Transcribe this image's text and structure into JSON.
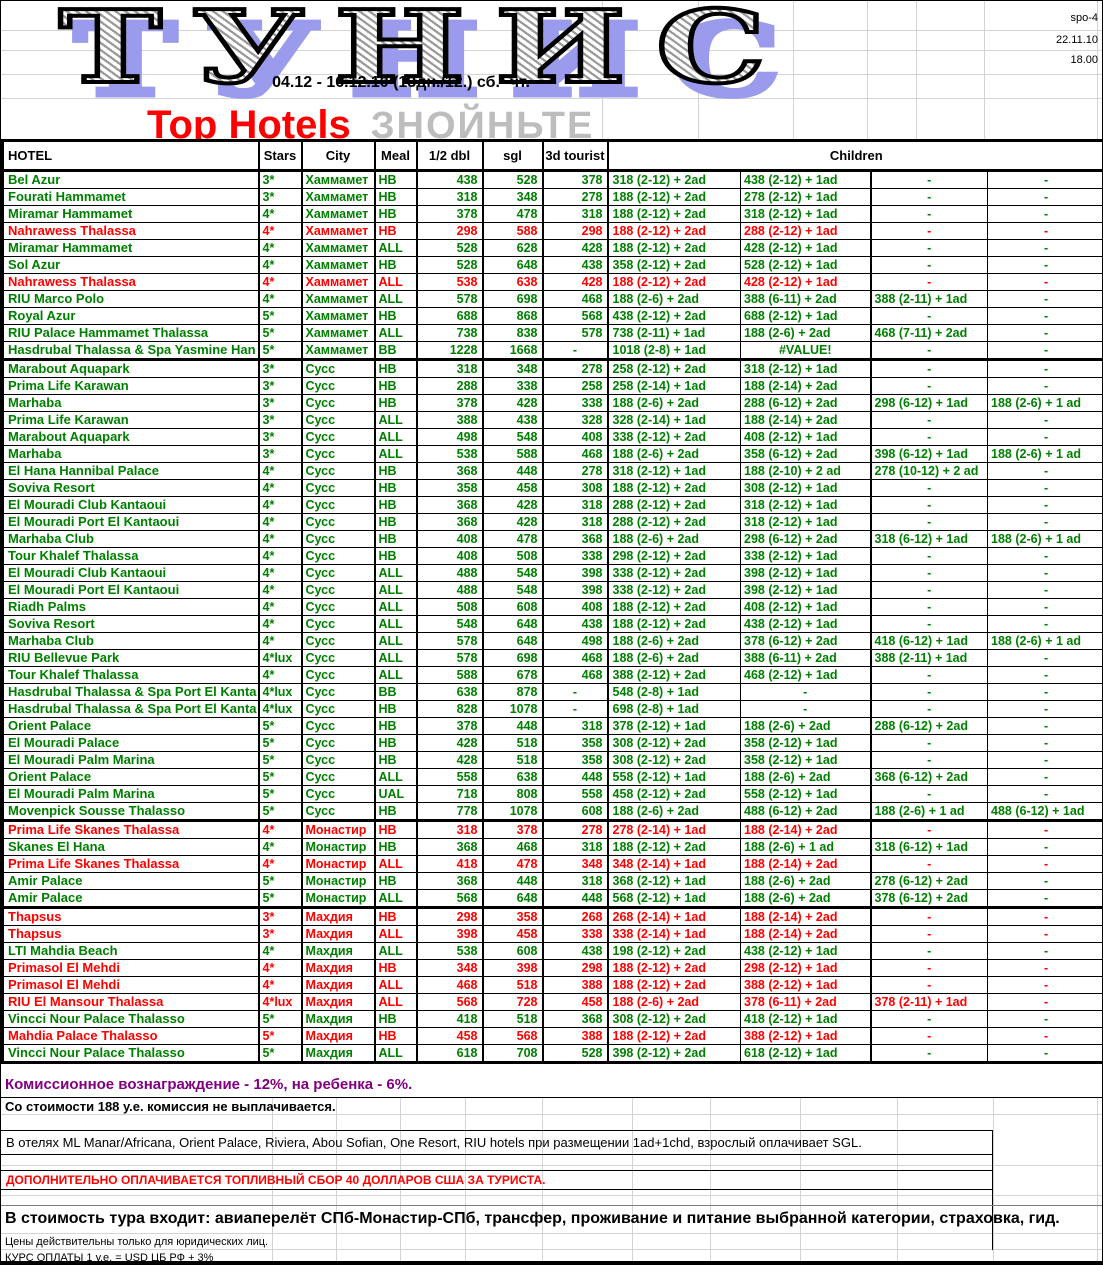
{
  "meta": {
    "ref": "spo-4",
    "date": "22.11.10",
    "time": "18.00"
  },
  "title": "ТУНИС",
  "subtitle": "04.12 - 16.12.10 (13дн./12.) сб. -чт.",
  "promo": {
    "red": "Top Hotels",
    "gray": "ЗНОЙНЬТЕ"
  },
  "colors": {
    "regular_row": "#008000",
    "promo_row": "#FF0000",
    "commission_note": "#800080",
    "title_shadow": "#9B9BEE",
    "promo_gray": "#BDBDBD"
  },
  "table": {
    "headers": {
      "hotel": "HOTEL",
      "stars": "Stars",
      "city": "City",
      "meal": "Meal",
      "dbl": "1/2 dbl",
      "sgl": "sgl",
      "t3d": "3d tourist",
      "children": "Children"
    },
    "rows": [
      {
        "hotel": "Bel Azur",
        "stars": "3*",
        "city": "Хаммамет",
        "meal": "HB",
        "dbl": "438",
        "sgl": "528",
        "t3d": "378",
        "ch1": "318 (2-12) + 2ad",
        "ch2": "438 (2-12) + 1ad",
        "ch3": "-",
        "ch4": "-",
        "color": "green"
      },
      {
        "hotel": "Fourati Hammamet",
        "stars": "3*",
        "city": "Хаммамет",
        "meal": "HB",
        "dbl": "318",
        "sgl": "348",
        "t3d": "278",
        "ch1": "188 (2-12) + 2ad",
        "ch2": "278 (2-12) + 1ad",
        "ch3": "-",
        "ch4": "-",
        "color": "green"
      },
      {
        "hotel": "Miramar Hammamet",
        "stars": "4*",
        "city": "Хаммамет",
        "meal": "HB",
        "dbl": "378",
        "sgl": "478",
        "t3d": "318",
        "ch1": "188 (2-12) + 2ad",
        "ch2": "318 (2-12) + 1ad",
        "ch3": "-",
        "ch4": "-",
        "color": "green"
      },
      {
        "hotel": "Nahrawess Thalassa",
        "stars": "4*",
        "city": "Хаммамет",
        "meal": "HB",
        "dbl": "298",
        "sgl": "588",
        "t3d": "298",
        "ch1": "188 (2-12) + 2ad",
        "ch2": "288 (2-12) + 1ad",
        "ch3": "-",
        "ch4": "-",
        "color": "red"
      },
      {
        "hotel": "Miramar Hammamet",
        "stars": "4*",
        "city": "Хаммамет",
        "meal": "ALL",
        "dbl": "528",
        "sgl": "628",
        "t3d": "428",
        "ch1": "188 (2-12) + 2ad",
        "ch2": "428 (2-12) + 1ad",
        "ch3": "-",
        "ch4": "-",
        "color": "green"
      },
      {
        "hotel": "Sol Azur",
        "stars": "4*",
        "city": "Хаммамет",
        "meal": "HB",
        "dbl": "528",
        "sgl": "648",
        "t3d": "438",
        "ch1": "358 (2-12) + 2ad",
        "ch2": "528 (2-12) + 1ad",
        "ch3": "-",
        "ch4": "-",
        "color": "green"
      },
      {
        "hotel": "Nahrawess Thalassa",
        "stars": "4*",
        "city": "Хаммамет",
        "meal": "ALL",
        "dbl": "538",
        "sgl": "638",
        "t3d": "428",
        "ch1": "188 (2-12) + 2ad",
        "ch2": "428 (2-12) + 1ad",
        "ch3": "-",
        "ch4": "-",
        "color": "red"
      },
      {
        "hotel": "RIU Marco Polo",
        "stars": "4*",
        "city": "Хаммамет",
        "meal": "ALL",
        "dbl": "578",
        "sgl": "698",
        "t3d": "468",
        "ch1": "188 (2-6) + 2ad",
        "ch2": "388 (6-11) + 2ad",
        "ch3": "388 (2-11) + 1ad",
        "ch4": "-",
        "color": "green"
      },
      {
        "hotel": "Royal Azur",
        "stars": "5*",
        "city": "Хаммамет",
        "meal": "HB",
        "dbl": "688",
        "sgl": "868",
        "t3d": "568",
        "ch1": "438 (2-12) + 2ad",
        "ch2": "688 (2-12) + 1ad",
        "ch3": "-",
        "ch4": "-",
        "color": "green"
      },
      {
        "hotel": "RIU Palace Hammamet Thalassa",
        "stars": "5*",
        "city": "Хаммамет",
        "meal": "ALL",
        "dbl": "738",
        "sgl": "838",
        "t3d": "578",
        "ch1": "738 (2-11) + 1ad",
        "ch2": "188 (2-6) + 2ad",
        "ch3": "468 (7-11) + 2ad",
        "ch4": "-",
        "color": "green"
      },
      {
        "hotel": "Hasdrubal Thalassa & Spa Yasmine Han",
        "stars": "5*",
        "city": "Хаммамет",
        "meal": "BB",
        "dbl": "1228",
        "sgl": "1668",
        "t3d": "-",
        "ch1": "1018 (2-8) + 1ad",
        "ch2": "#VALUE!",
        "ch3": "-",
        "ch4": "-",
        "color": "green"
      },
      {
        "hotel": "Marabout Aquapark",
        "stars": "3*",
        "city": "Сусс",
        "meal": "HB",
        "dbl": "318",
        "sgl": "348",
        "t3d": "278",
        "ch1": "258 (2-12) + 2ad",
        "ch2": "318 (2-12) + 1ad",
        "ch3": "-",
        "ch4": "-",
        "color": "green",
        "sep": true
      },
      {
        "hotel": "Prima Life Karawan",
        "stars": "3*",
        "city": "Сусс",
        "meal": "HB",
        "dbl": "288",
        "sgl": "338",
        "t3d": "258",
        "ch1": "258 (2-14) + 1ad",
        "ch2": "188 (2-14) + 2ad",
        "ch3": "-",
        "ch4": "-",
        "color": "green"
      },
      {
        "hotel": "Marhaba",
        "stars": "3*",
        "city": "Сусс",
        "meal": "HB",
        "dbl": "378",
        "sgl": "428",
        "t3d": "338",
        "ch1": "188 (2-6) + 2ad",
        "ch2": "288 (6-12) + 2ad",
        "ch3": "298 (6-12) + 1ad",
        "ch4": "188 (2-6) + 1 ad",
        "color": "green"
      },
      {
        "hotel": "Prima Life Karawan",
        "stars": "3*",
        "city": "Сусс",
        "meal": "ALL",
        "dbl": "388",
        "sgl": "438",
        "t3d": "328",
        "ch1": "328 (2-14) + 1ad",
        "ch2": "188 (2-14) + 2ad",
        "ch3": "-",
        "ch4": "-",
        "color": "green"
      },
      {
        "hotel": "Marabout Aquapark",
        "stars": "3*",
        "city": "Сусс",
        "meal": "ALL",
        "dbl": "498",
        "sgl": "548",
        "t3d": "408",
        "ch1": "338 (2-12) + 2ad",
        "ch2": "408 (2-12) + 1ad",
        "ch3": "-",
        "ch4": "-",
        "color": "green"
      },
      {
        "hotel": "Marhaba",
        "stars": "3*",
        "city": "Сусс",
        "meal": "ALL",
        "dbl": "538",
        "sgl": "588",
        "t3d": "468",
        "ch1": "188 (2-6) + 2ad",
        "ch2": "358 (6-12) + 2ad",
        "ch3": "398 (6-12) + 1ad",
        "ch4": "188 (2-6) + 1 ad",
        "color": "green"
      },
      {
        "hotel": "El Hana Hannibal Palace",
        "stars": "4*",
        "city": "Сусс",
        "meal": "HB",
        "dbl": "368",
        "sgl": "448",
        "t3d": "278",
        "ch1": "318 (2-12) + 1ad",
        "ch2": "188 (2-10) + 2 ad",
        "ch3": "278 (10-12) + 2 ad",
        "ch4": "-",
        "color": "green"
      },
      {
        "hotel": "Soviva Resort",
        "stars": "4*",
        "city": "Сусс",
        "meal": "HB",
        "dbl": "358",
        "sgl": "458",
        "t3d": "308",
        "ch1": "188 (2-12) + 2ad",
        "ch2": "308 (2-12) + 1ad",
        "ch3": "-",
        "ch4": "-",
        "color": "green"
      },
      {
        "hotel": "El Mouradi  Club Kantaoui",
        "stars": "4*",
        "city": "Сусс",
        "meal": "HB",
        "dbl": "368",
        "sgl": "428",
        "t3d": "318",
        "ch1": "288 (2-12) + 2ad",
        "ch2": "318 (2-12) + 1ad",
        "ch3": "-",
        "ch4": "-",
        "color": "green"
      },
      {
        "hotel": "El Mouradi Port El Kantaoui",
        "stars": "4*",
        "city": "Сусс",
        "meal": "HB",
        "dbl": "368",
        "sgl": "428",
        "t3d": "318",
        "ch1": "288 (2-12) + 2ad",
        "ch2": "318 (2-12) + 1ad",
        "ch3": "-",
        "ch4": "-",
        "color": "green"
      },
      {
        "hotel": "Marhaba Club",
        "stars": "4*",
        "city": "Сусс",
        "meal": "HB",
        "dbl": "408",
        "sgl": "478",
        "t3d": "368",
        "ch1": "188 (2-6) + 2ad",
        "ch2": "298 (6-12) + 2ad",
        "ch3": "318 (6-12) + 1ad",
        "ch4": "188 (2-6) + 1 ad",
        "color": "green"
      },
      {
        "hotel": "Tour Khalef Thalassa",
        "stars": "4*",
        "city": "Сусс",
        "meal": "HB",
        "dbl": "408",
        "sgl": "508",
        "t3d": "338",
        "ch1": "298 (2-12) + 2ad",
        "ch2": "338 (2-12) + 1ad",
        "ch3": "-",
        "ch4": "-",
        "color": "green"
      },
      {
        "hotel": "El Mouradi  Club Kantaoui",
        "stars": "4*",
        "city": "Сусс",
        "meal": "ALL",
        "dbl": "488",
        "sgl": "548",
        "t3d": "398",
        "ch1": "338 (2-12) + 2ad",
        "ch2": "398 (2-12) + 1ad",
        "ch3": "-",
        "ch4": "-",
        "color": "green"
      },
      {
        "hotel": "El Mouradi Port El Kantaoui",
        "stars": "4*",
        "city": "Сусс",
        "meal": "ALL",
        "dbl": "488",
        "sgl": "548",
        "t3d": "398",
        "ch1": "338 (2-12) + 2ad",
        "ch2": "398 (2-12) + 1ad",
        "ch3": "-",
        "ch4": "-",
        "color": "green"
      },
      {
        "hotel": "Riadh Palms",
        "stars": "4*",
        "city": "Сусс",
        "meal": "ALL",
        "dbl": "508",
        "sgl": "608",
        "t3d": "408",
        "ch1": "188 (2-12) + 2ad",
        "ch2": "408 (2-12) + 1ad",
        "ch3": "-",
        "ch4": "-",
        "color": "green"
      },
      {
        "hotel": "Soviva Resort",
        "stars": "4*",
        "city": "Сусс",
        "meal": "ALL",
        "dbl": "548",
        "sgl": "648",
        "t3d": "438",
        "ch1": "188 (2-12) + 2ad",
        "ch2": "438 (2-12) + 1ad",
        "ch3": "-",
        "ch4": "-",
        "color": "green"
      },
      {
        "hotel": "Marhaba Club",
        "stars": "4*",
        "city": "Сусс",
        "meal": "ALL",
        "dbl": "578",
        "sgl": "648",
        "t3d": "498",
        "ch1": "188 (2-6) + 2ad",
        "ch2": "378 (6-12) + 2ad",
        "ch3": "418 (6-12) + 1ad",
        "ch4": "188 (2-6) + 1 ad",
        "color": "green"
      },
      {
        "hotel": "RIU Bellevue Park",
        "stars": "4*lux",
        "city": "Сусс",
        "meal": "ALL",
        "dbl": "578",
        "sgl": "698",
        "t3d": "468",
        "ch1": "188 (2-6) + 2ad",
        "ch2": "388 (6-11) + 2ad",
        "ch3": "388 (2-11) + 1ad",
        "ch4": "-",
        "color": "green"
      },
      {
        "hotel": "Tour Khalef Thalassa",
        "stars": "4*",
        "city": "Сусс",
        "meal": "ALL",
        "dbl": "588",
        "sgl": "678",
        "t3d": "468",
        "ch1": "388 (2-12) + 2ad",
        "ch2": "468 (2-12) + 1ad",
        "ch3": "-",
        "ch4": "-",
        "color": "green"
      },
      {
        "hotel": "Hasdrubal Thalassa & Spa Port El Kanta",
        "stars": "4*lux",
        "city": "Сусс",
        "meal": "BB",
        "dbl": "638",
        "sgl": "878",
        "t3d": "-",
        "ch1": "548 (2-8) + 1ad",
        "ch2": "-",
        "ch3": "-",
        "ch4": "-",
        "color": "green"
      },
      {
        "hotel": "Hasdrubal Thalassa & Spa Port El Kanta",
        "stars": "4*lux",
        "city": "Сусс",
        "meal": "HB",
        "dbl": "828",
        "sgl": "1078",
        "t3d": "-",
        "ch1": "698 (2-8) + 1ad",
        "ch2": "-",
        "ch3": "-",
        "ch4": "-",
        "color": "green"
      },
      {
        "hotel": "Orient Palace",
        "stars": "5*",
        "city": "Сусс",
        "meal": "HB",
        "dbl": "378",
        "sgl": "448",
        "t3d": "318",
        "ch1": "378 (2-12) + 1ad",
        "ch2": "188 (2-6) + 2ad",
        "ch3": "288 (6-12) + 2ad",
        "ch4": "-",
        "color": "green"
      },
      {
        "hotel": "El Mouradi Palace",
        "stars": "5*",
        "city": "Сусс",
        "meal": "HB",
        "dbl": "428",
        "sgl": "518",
        "t3d": "358",
        "ch1": "308 (2-12) + 2ad",
        "ch2": "358 (2-12) + 1ad",
        "ch3": "-",
        "ch4": "-",
        "color": "green"
      },
      {
        "hotel": "El Mouradi Palm Marina",
        "stars": "5*",
        "city": "Сусс",
        "meal": "HB",
        "dbl": "428",
        "sgl": "518",
        "t3d": "358",
        "ch1": "308 (2-12) + 2ad",
        "ch2": "358 (2-12) + 1ad",
        "ch3": "-",
        "ch4": "-",
        "color": "green"
      },
      {
        "hotel": "Orient Palace",
        "stars": "5*",
        "city": "Сусс",
        "meal": "ALL",
        "dbl": "558",
        "sgl": "638",
        "t3d": "448",
        "ch1": "558 (2-12) + 1ad",
        "ch2": "188 (2-6) + 2ad",
        "ch3": "368 (6-12) + 2ad",
        "ch4": "-",
        "color": "green"
      },
      {
        "hotel": "El Mouradi Palm Marina",
        "stars": "5*",
        "city": "Сусс",
        "meal": "UAL",
        "dbl": "718",
        "sgl": "808",
        "t3d": "558",
        "ch1": "458 (2-12) + 2ad",
        "ch2": "558 (2-12) + 1ad",
        "ch3": "-",
        "ch4": "-",
        "color": "green"
      },
      {
        "hotel": "Movenpick Sousse Thalasso",
        "stars": "5*",
        "city": "Сусс",
        "meal": "HB",
        "dbl": "778",
        "sgl": "1078",
        "t3d": "608",
        "ch1": "188 (2-6) + 2ad",
        "ch2": "488 (6-12) + 2ad",
        "ch3": "188 (2-6) + 1 ad",
        "ch4": "488 (6-12) + 1ad",
        "color": "green"
      },
      {
        "hotel": "Prima Life Skanes Thalassa",
        "stars": "4*",
        "city": "Монастир",
        "meal": "HB",
        "dbl": "318",
        "sgl": "378",
        "t3d": "278",
        "ch1": "278 (2-14) + 1ad",
        "ch2": "188 (2-14) + 2ad",
        "ch3": "-",
        "ch4": "-",
        "color": "red",
        "sep": true
      },
      {
        "hotel": "Skanes El Hana",
        "stars": "4*",
        "city": "Монастир",
        "meal": "HB",
        "dbl": "368",
        "sgl": "468",
        "t3d": "318",
        "ch1": "188 (2-12) + 2ad",
        "ch2": "188 (2-6) + 1 ad",
        "ch3": "318 (6-12) + 1ad",
        "ch4": "-",
        "color": "green"
      },
      {
        "hotel": "Prima Life Skanes Thalassa",
        "stars": "4*",
        "city": "Монастир",
        "meal": "ALL",
        "dbl": "418",
        "sgl": "478",
        "t3d": "348",
        "ch1": "348 (2-14) + 1ad",
        "ch2": "188 (2-14) + 2ad",
        "ch3": "-",
        "ch4": "-",
        "color": "red"
      },
      {
        "hotel": "Amir Palace",
        "stars": "5*",
        "city": "Монастир",
        "meal": "HB",
        "dbl": "368",
        "sgl": "448",
        "t3d": "318",
        "ch1": "368 (2-12) + 1ad",
        "ch2": "188 (2-6) + 2ad",
        "ch3": "278 (6-12) + 2ad",
        "ch4": "-",
        "color": "green"
      },
      {
        "hotel": "Amir Palace",
        "stars": "5*",
        "city": "Монастир",
        "meal": "ALL",
        "dbl": "568",
        "sgl": "648",
        "t3d": "448",
        "ch1": "568 (2-12) + 1ad",
        "ch2": "188 (2-6) + 2ad",
        "ch3": "378 (6-12) + 2ad",
        "ch4": "-",
        "color": "green"
      },
      {
        "hotel": "Thapsus",
        "stars": "3*",
        "city": "Махдия",
        "meal": "HB",
        "dbl": "298",
        "sgl": "358",
        "t3d": "268",
        "ch1": "268 (2-14) + 1ad",
        "ch2": "188 (2-14) + 2ad",
        "ch3": "-",
        "ch4": "-",
        "color": "red",
        "sep": true
      },
      {
        "hotel": "Thapsus",
        "stars": "3*",
        "city": "Махдия",
        "meal": "ALL",
        "dbl": "398",
        "sgl": "458",
        "t3d": "338",
        "ch1": "338 (2-14) + 1ad",
        "ch2": "188 (2-14) + 2ad",
        "ch3": "-",
        "ch4": "-",
        "color": "red"
      },
      {
        "hotel": "LTI Mahdia Beach",
        "stars": "4*",
        "city": "Махдия",
        "meal": "ALL",
        "dbl": "538",
        "sgl": "608",
        "t3d": "438",
        "ch1": "198 (2-12) + 2ad",
        "ch2": "438 (2-12) + 1ad",
        "ch3": "-",
        "ch4": "-",
        "color": "green"
      },
      {
        "hotel": "Primasol El Mehdi",
        "stars": "4*",
        "city": "Махдия",
        "meal": "HB",
        "dbl": "348",
        "sgl": "398",
        "t3d": "298",
        "ch1": "188 (2-12) + 2ad",
        "ch2": "298 (2-12) + 1ad",
        "ch3": "-",
        "ch4": "-",
        "color": "red"
      },
      {
        "hotel": "Primasol El Mehdi",
        "stars": "4*",
        "city": "Махдия",
        "meal": "ALL",
        "dbl": "468",
        "sgl": "518",
        "t3d": "388",
        "ch1": "188 (2-12) + 2ad",
        "ch2": "388 (2-12) + 1ad",
        "ch3": "-",
        "ch4": "-",
        "color": "red"
      },
      {
        "hotel": "RIU El Mansour Thalassa",
        "stars": "4*lux",
        "city": "Махдия",
        "meal": "ALL",
        "dbl": "568",
        "sgl": "728",
        "t3d": "458",
        "ch1": "188 (2-6) + 2ad",
        "ch2": "378 (6-11) + 2ad",
        "ch3": "378 (2-11) + 1ad",
        "ch4": "-",
        "color": "red"
      },
      {
        "hotel": "Vincci Nour Palace Thalasso",
        "stars": "5*",
        "city": "Махдия",
        "meal": "HB",
        "dbl": "418",
        "sgl": "518",
        "t3d": "368",
        "ch1": "308 (2-12) + 2ad",
        "ch2": "418 (2-12) + 1ad",
        "ch3": "-",
        "ch4": "-",
        "color": "green"
      },
      {
        "hotel": "Mahdia Palace Thalasso",
        "stars": "5*",
        "city": "Махдия",
        "meal": "HB",
        "dbl": "458",
        "sgl": "568",
        "t3d": "388",
        "ch1": "188 (2-12) + 2ad",
        "ch2": "388 (2-12) + 1ad",
        "ch3": "-",
        "ch4": "-",
        "color": "red"
      },
      {
        "hotel": "Vincci Nour Palace Thalasso",
        "stars": "5*",
        "city": "Махдия",
        "meal": "ALL",
        "dbl": "618",
        "sgl": "708",
        "t3d": "528",
        "ch1": "398 (2-12) + 2ad",
        "ch2": "618 (2-12) + 1ad",
        "ch3": "-",
        "ch4": "-",
        "color": "green"
      }
    ]
  },
  "notes": {
    "commission": "Комиссионное вознаграждение - 12%, на ребенка - 6%.",
    "no_commission": "Со стоимости 188 у.е. комиссия не выплачивается.",
    "sgl_rule": "В отелях ML Manar/Africana, Orient Palace, Riviera, Abou Sofian, One Resort, RIU hotels  при размещении 1ad+1chd, взрослый оплачивает SGL.",
    "fuel_surcharge": "ДОПОЛНИТЕЛЬНО ОПЛАЧИВАЕТСЯ ТОПЛИВНЫЙ СБОР 40 ДОЛЛАРОВ США ЗА ТУРИСТА.",
    "included": "В стоимость тура входит: авиаперелёт СПб-Монастир-СПб, трансфер, проживание и питание выбранной категории, страховка, гид.",
    "legal": "Цены действительны только для юридических лиц.",
    "exchange_rate": "КУРС ОПЛАТЫ 1 у.е. = USD ЦБ РФ + 3%"
  }
}
